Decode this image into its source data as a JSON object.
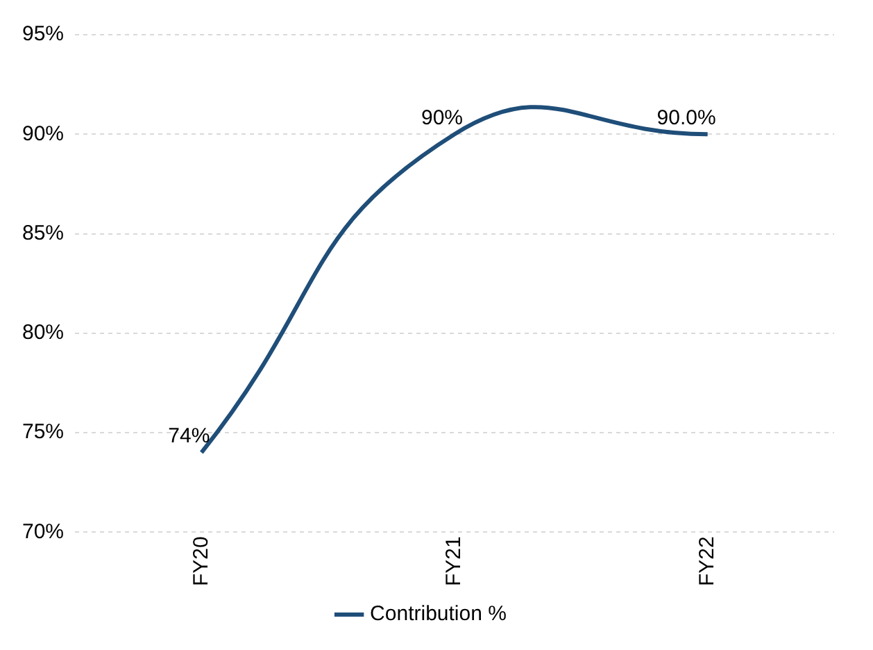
{
  "chart_data": {
    "type": "line",
    "categories": [
      "FY20",
      "FY21",
      "FY22"
    ],
    "series": [
      {
        "name": "Contribution %",
        "color": "#1f4e79",
        "values": [
          74,
          90,
          90
        ],
        "value_labels": [
          "74%",
          "90%",
          "90.0%"
        ]
      }
    ],
    "ylim": [
      70,
      95
    ],
    "yticks": [
      {
        "value": 70,
        "label": "70%"
      },
      {
        "value": 75,
        "label": "75%"
      },
      {
        "value": 80,
        "label": "80%"
      },
      {
        "value": 85,
        "label": "85%"
      },
      {
        "value": 90,
        "label": "90%"
      },
      {
        "value": 95,
        "label": "95%"
      }
    ],
    "grid": "y",
    "legend": "bottom",
    "marker": "none",
    "line_style": "solid"
  }
}
